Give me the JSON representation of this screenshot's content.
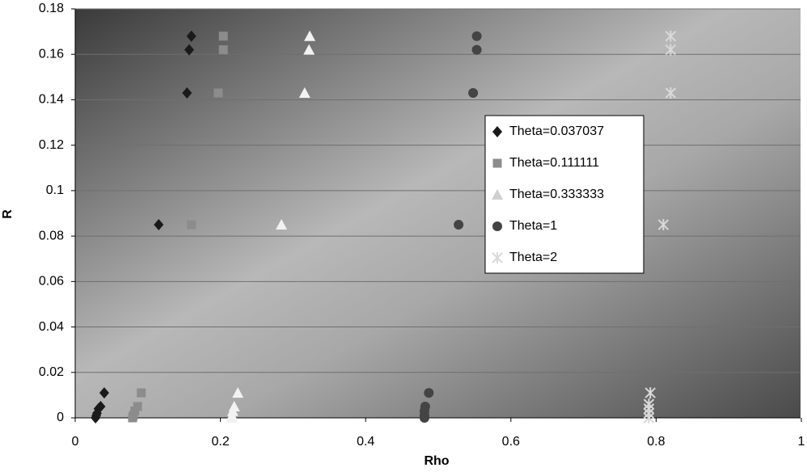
{
  "chart_data": {
    "type": "scatter",
    "x_label": "Rho",
    "y_label": "R",
    "xlim": [
      0,
      1
    ],
    "xticks": [
      0,
      0.2,
      0.4,
      0.6,
      0.8,
      1
    ],
    "ylim": [
      0,
      0.18
    ],
    "yticks": [
      0,
      0.02,
      0.04,
      0.06,
      0.08,
      0.1,
      0.12,
      0.14,
      0.16,
      0.18
    ],
    "grid": true,
    "legend": "right",
    "series": [
      {
        "name": "Theta=0.037037",
        "color": "#1a1a1a",
        "marker": "diamond",
        "x": [
          0.16,
          0.157,
          0.154,
          0.115,
          0.04,
          0.035,
          0.032,
          0.03,
          0.029,
          0.028
        ],
        "values": [
          0.168,
          0.162,
          0.143,
          0.085,
          0.011,
          0.005,
          0.004,
          0.002,
          0.001,
          0
        ]
      },
      {
        "name": "Theta=0.111111",
        "color": "#8c8c8c",
        "marker": "square",
        "x": [
          0.204,
          0.204,
          0.197,
          0.16,
          0.091,
          0.086,
          0.082,
          0.08,
          0.079
        ],
        "values": [
          0.168,
          0.162,
          0.143,
          0.085,
          0.011,
          0.005,
          0.003,
          0.001,
          0
        ]
      },
      {
        "name": "Theta=0.333333",
        "color": "#f2f2f2",
        "marker": "triangle",
        "x": [
          0.323,
          0.322,
          0.316,
          0.284,
          0.224,
          0.219,
          0.217,
          0.216,
          0.216
        ],
        "values": [
          0.168,
          0.162,
          0.143,
          0.085,
          0.011,
          0.005,
          0.003,
          0.001,
          0
        ]
      },
      {
        "name": "Theta=1",
        "color": "#444444",
        "marker": "circle",
        "x": [
          0.553,
          0.553,
          0.548,
          0.528,
          0.487,
          0.482,
          0.481,
          0.481,
          0.481
        ],
        "values": [
          0.168,
          0.162,
          0.143,
          0.085,
          0.011,
          0.005,
          0.003,
          0.001,
          0
        ]
      },
      {
        "name": "Theta=2",
        "color": "#d9d9d9",
        "marker": "star",
        "x": [
          0.82,
          0.82,
          0.82,
          0.81,
          0.792,
          0.79,
          0.79,
          0.79,
          0.79
        ],
        "values": [
          0.168,
          0.162,
          0.143,
          0.085,
          0.011,
          0.006,
          0.004,
          0.002,
          0
        ]
      }
    ]
  }
}
